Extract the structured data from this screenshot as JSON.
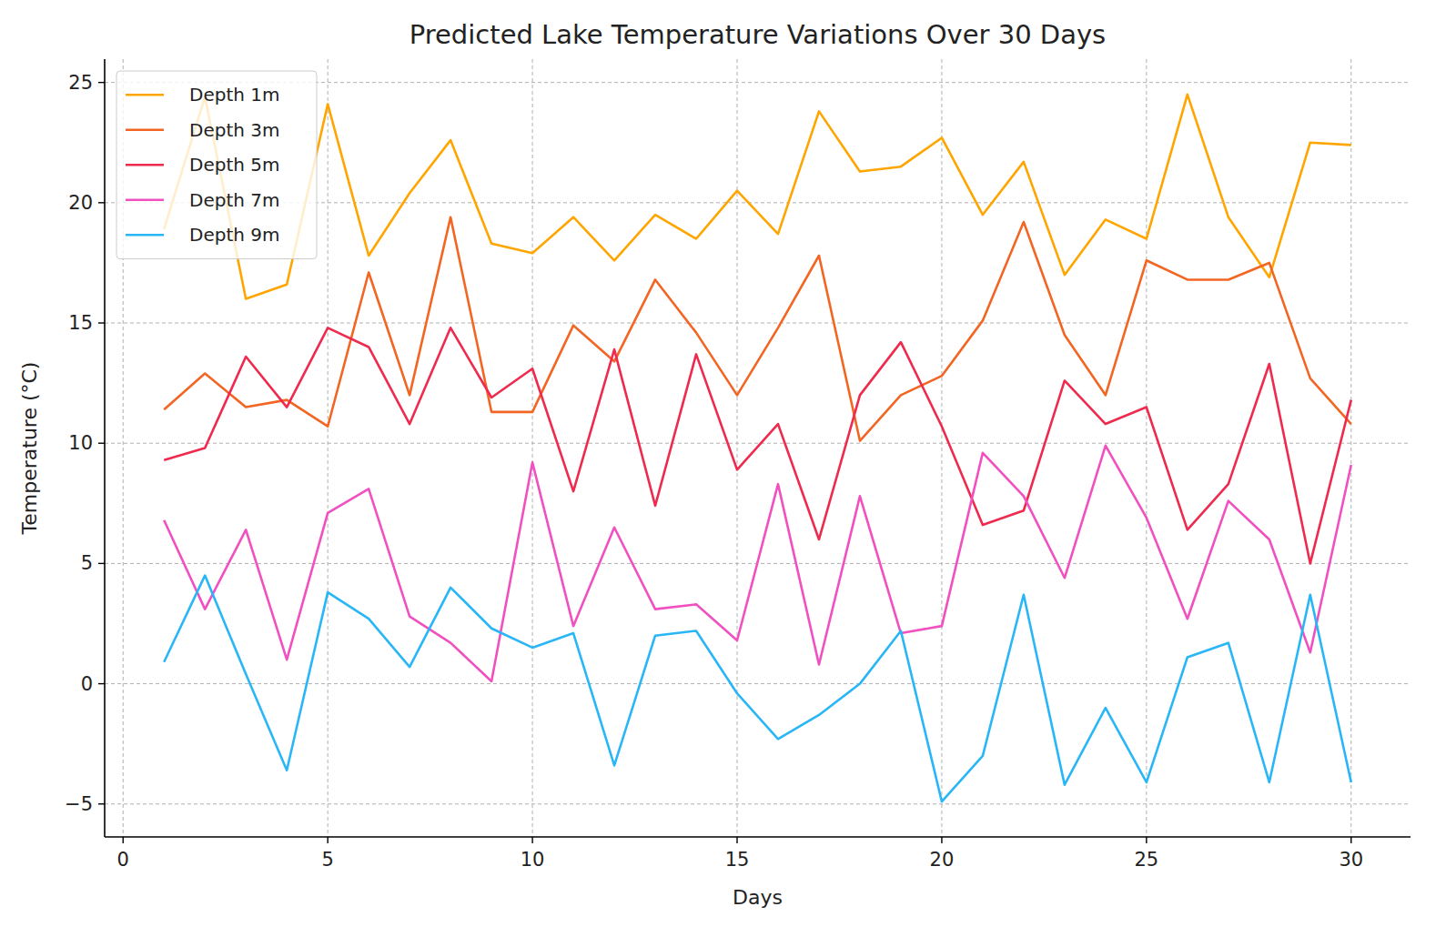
{
  "chart_data": {
    "type": "line",
    "title": "Predicted Lake Temperature Variations Over 30 Days",
    "x_label": "Days",
    "y_label": "Temperature (°C)",
    "x": [
      1,
      2,
      3,
      4,
      5,
      6,
      7,
      8,
      9,
      10,
      11,
      12,
      13,
      14,
      15,
      16,
      17,
      18,
      19,
      20,
      21,
      22,
      23,
      24,
      25,
      26,
      27,
      28,
      29,
      30
    ],
    "series": [
      {
        "name": "Depth 1m",
        "color": "#ffa500",
        "values": [
          18.9,
          24.4,
          16.0,
          16.6,
          24.1,
          17.8,
          20.4,
          22.6,
          18.3,
          17.9,
          19.4,
          17.6,
          19.5,
          18.5,
          20.5,
          18.7,
          23.8,
          21.3,
          21.5,
          22.7,
          19.5,
          21.7,
          17.0,
          19.3,
          18.5,
          24.5,
          19.4,
          16.9,
          22.5,
          22.4
        ]
      },
      {
        "name": "Depth 3m",
        "color": "#f26522",
        "values": [
          11.4,
          12.9,
          11.5,
          11.8,
          10.7,
          17.1,
          12.0,
          19.4,
          11.3,
          11.3,
          14.9,
          13.4,
          16.8,
          14.6,
          12.0,
          14.8,
          17.8,
          10.1,
          12.0,
          12.8,
          15.1,
          19.2,
          14.5,
          12.0,
          17.6,
          16.8,
          16.8,
          17.5,
          12.7,
          10.8
        ]
      },
      {
        "name": "Depth 5m",
        "color": "#ee2a4e",
        "values": [
          9.3,
          9.8,
          13.6,
          11.5,
          14.8,
          14.0,
          10.8,
          14.8,
          11.9,
          13.1,
          8.0,
          13.9,
          7.4,
          13.7,
          8.9,
          10.8,
          6.0,
          12.0,
          14.2,
          10.7,
          6.6,
          7.2,
          12.6,
          10.8,
          11.5,
          6.4,
          8.3,
          13.3,
          5.0,
          11.8
        ]
      },
      {
        "name": "Depth 7m",
        "color": "#f050c0",
        "values": [
          6.8,
          3.1,
          6.4,
          1.0,
          7.1,
          8.1,
          2.8,
          1.7,
          0.1,
          9.2,
          2.4,
          6.5,
          3.1,
          3.3,
          1.8,
          8.3,
          0.8,
          7.8,
          2.1,
          2.4,
          9.6,
          7.8,
          4.4,
          9.9,
          6.9,
          2.7,
          7.6,
          6.0,
          1.3,
          9.1
        ]
      },
      {
        "name": "Depth 9m",
        "color": "#29b6f6",
        "values": [
          0.9,
          4.5,
          0.4,
          -3.6,
          3.8,
          2.7,
          0.7,
          4.0,
          2.3,
          1.5,
          2.1,
          -3.4,
          2.0,
          2.2,
          -0.4,
          -2.3,
          -1.3,
          0.0,
          2.2,
          -4.9,
          -3.0,
          3.7,
          -4.2,
          -1.0,
          -4.1,
          1.1,
          1.7,
          -4.1,
          3.7,
          -4.1
        ]
      }
    ],
    "xlim": [
      -0.45,
      31.45
    ],
    "xticks": [
      0,
      5,
      10,
      15,
      20,
      25,
      30
    ],
    "ylim": [
      -6.37,
      25.97
    ],
    "yticks": [
      {
        "value": -5,
        "label": "−5"
      },
      0,
      5,
      10,
      15,
      20,
      25
    ],
    "grid": true,
    "legend": "upper left"
  }
}
